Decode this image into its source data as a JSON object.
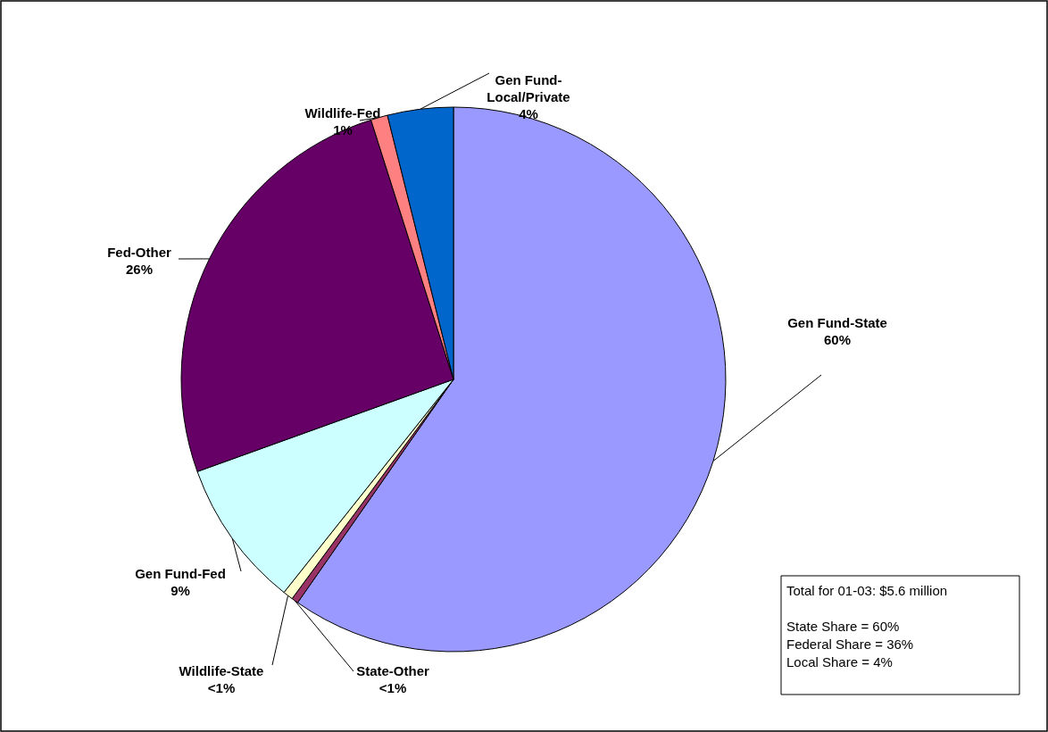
{
  "chart_data": {
    "type": "pie",
    "categories": [
      "Gen Fund-State",
      "State-Other",
      "Wildlife-State",
      "Gen Fund-Fed",
      "Fed-Other",
      "Wildlife-Fed",
      "Gen Fund-Local/Private"
    ],
    "values": [
      59.7,
      0.4,
      0.6,
      8.8,
      25.6,
      1.0,
      3.9
    ],
    "colors": [
      "#9999ff",
      "#993366",
      "#ffffcc",
      "#ccffff",
      "#660066",
      "#ff8080",
      "#0066cc"
    ],
    "value_labels": [
      "60%",
      "<1%",
      "<1%",
      "9%",
      "26%",
      "1%",
      "4%"
    ],
    "annotations": [
      "Total for 01-03: $5.6 million",
      "State Share = 60%",
      "Federal Share = 36%",
      "Local Share = 4%"
    ]
  }
}
